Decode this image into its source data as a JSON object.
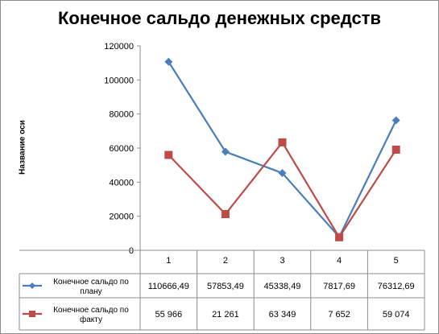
{
  "chart_data": {
    "type": "line",
    "title": "Конечное сальдо денежных средств",
    "ylabel": "Название оси",
    "xlabel": "",
    "categories": [
      "1",
      "2",
      "3",
      "4",
      "5"
    ],
    "yticks": [
      "0",
      "20000",
      "40000",
      "60000",
      "80000",
      "100000",
      "120000"
    ],
    "ylim": [
      0,
      120000
    ],
    "grid": false,
    "legend": "table-below",
    "series": [
      {
        "name": "Конечное сальдо по плану",
        "legend_lines": [
          "Конечное сальдо по",
          "плану"
        ],
        "values": [
          110666.49,
          57853.49,
          45338.49,
          7817.69,
          76312.69
        ],
        "labels": [
          "110666,49",
          "57853,49",
          "45338,49",
          "7817,69",
          "76312,69"
        ],
        "color": "#4a7ebb",
        "marker": "diamond"
      },
      {
        "name": "Конечное сальдо по факту",
        "legend_lines": [
          "Конечное сальдо по",
          "факту"
        ],
        "values": [
          55966,
          21261,
          63349,
          7652,
          59074
        ],
        "labels": [
          "55 966",
          "21 261",
          "63 349",
          "7 652",
          "59 074"
        ],
        "color": "#be4b48",
        "marker": "square"
      }
    ]
  }
}
